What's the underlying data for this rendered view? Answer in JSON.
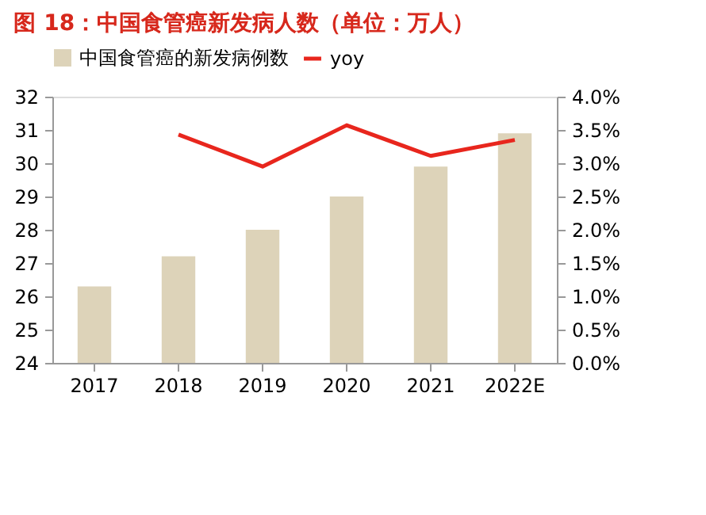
{
  "chart_data": {
    "type": "bar",
    "title": "图 18：中国食管癌新发病人数（单位：万人）",
    "categories": [
      "2017",
      "2018",
      "2019",
      "2020",
      "2021",
      "2022E"
    ],
    "series": [
      {
        "name": "中国食管癌的新发病例数",
        "color": "#ddd3b9",
        "values": [
          26.3,
          27.2,
          28.0,
          29.0,
          29.9,
          30.9
        ]
      },
      {
        "name": "yoy",
        "type": "line",
        "axis": "y2",
        "color": "#e8261d",
        "values": [
          null,
          3.43,
          2.95,
          3.57,
          3.11,
          3.35
        ]
      }
    ],
    "ylim": [
      24,
      32
    ],
    "yticks": [
      24,
      25,
      26,
      27,
      28,
      29,
      30,
      31,
      32
    ],
    "y2lim": [
      0,
      4.0
    ],
    "y2ticks": [
      {
        "value": 0,
        "label": "0.0%"
      },
      {
        "value": 0.5,
        "label": "0.5%"
      },
      {
        "value": 1.0,
        "label": "1.0%"
      },
      {
        "value": 1.5,
        "label": "1.5%"
      },
      {
        "value": 2.0,
        "label": "2.0%"
      },
      {
        "value": 2.5,
        "label": "2.5%"
      },
      {
        "value": 3.0,
        "label": "3.0%"
      },
      {
        "value": 3.5,
        "label": "3.5%"
      },
      {
        "value": 4.0,
        "label": "4.0%"
      }
    ],
    "legend": "top",
    "grid": false
  }
}
